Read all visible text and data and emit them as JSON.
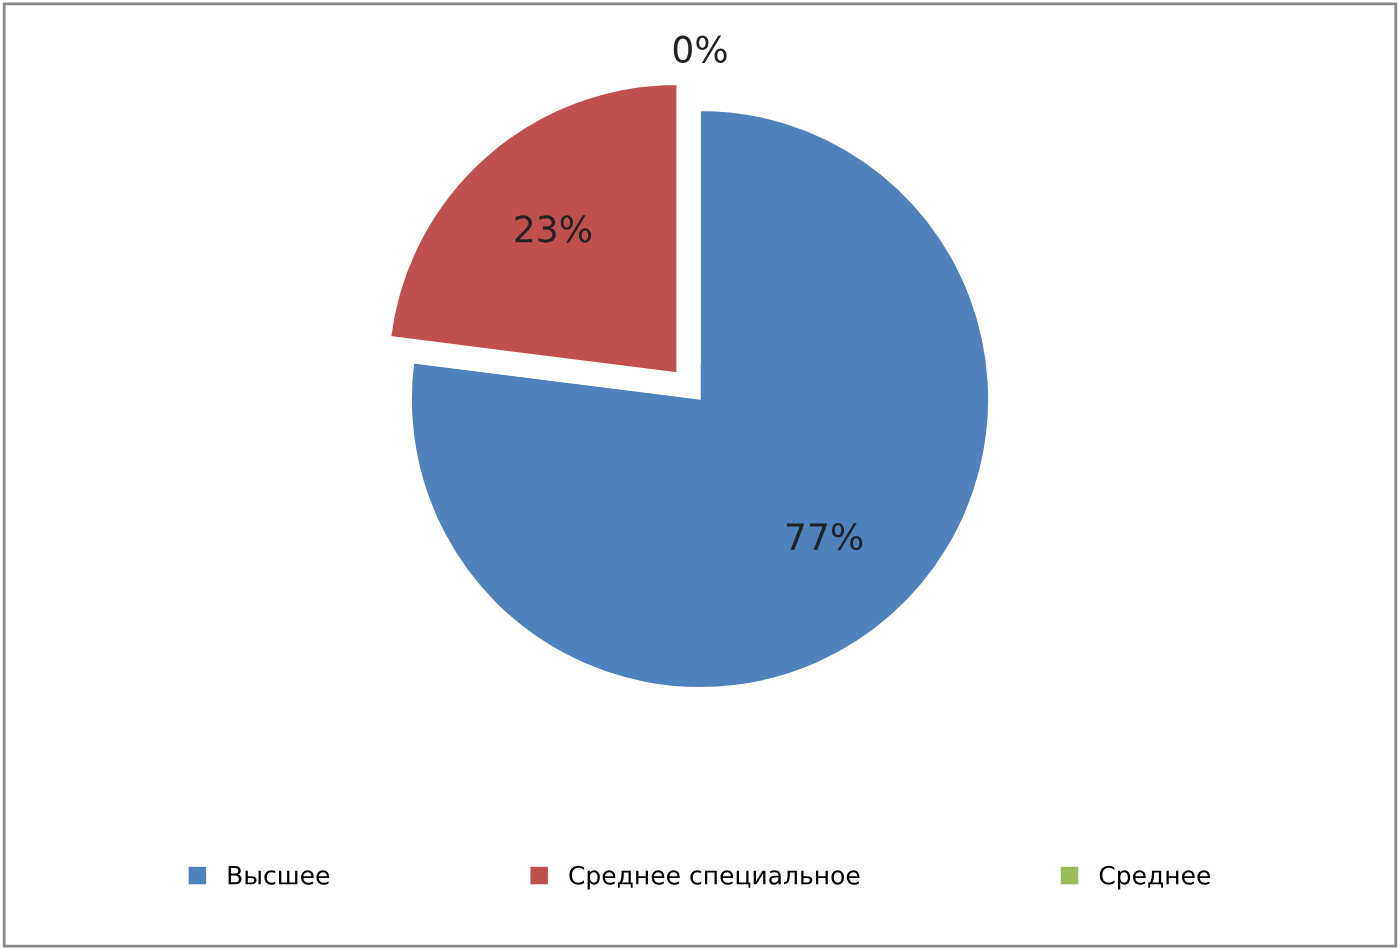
{
  "chart_data": {
    "type": "pie",
    "categories": [
      "Высшее",
      "Среднее специальное",
      "Среднее"
    ],
    "values": [
      77,
      23,
      0
    ],
    "colors": [
      "#4f81bd",
      "#c0504d",
      "#9bbb59"
    ],
    "value_labels": [
      "77%",
      "23%",
      "0%"
    ],
    "legend": "bottom"
  }
}
